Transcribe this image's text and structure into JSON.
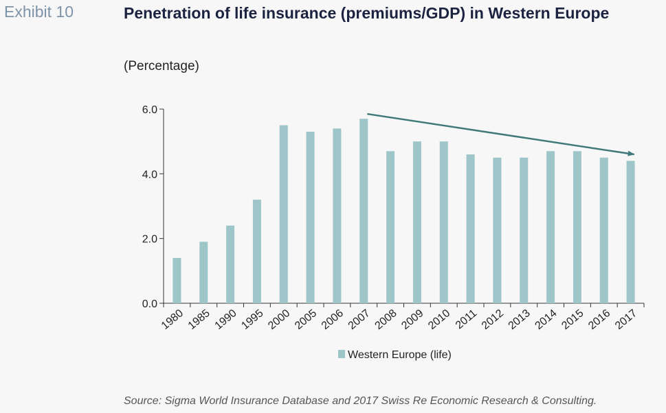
{
  "exhibit_label": "Exhibit 10",
  "title": "Penetration of life insurance (premiums/GDP) in Western Europe",
  "subtitle": "(Percentage)",
  "source": "Source: Sigma World Insurance Database and 2017 Swiss Re Economic Research & Consulting.",
  "colors": {
    "bar": "#9ec6c9",
    "trend_arrow": "#3f7a78",
    "axis": "#333333"
  },
  "chart_data": {
    "type": "bar",
    "categories": [
      "1980",
      "1985",
      "1990",
      "1995",
      "2000",
      "2005",
      "2006",
      "2007",
      "2008",
      "2009",
      "2010",
      "2011",
      "2012",
      "2013",
      "2014",
      "2015",
      "2016",
      "2017"
    ],
    "series": [
      {
        "name": "Western Europe (life)",
        "values": [
          1.4,
          1.9,
          2.4,
          3.2,
          5.5,
          5.3,
          5.4,
          5.7,
          4.7,
          5.0,
          5.0,
          4.6,
          4.5,
          4.5,
          4.7,
          4.7,
          4.5,
          4.4
        ]
      }
    ],
    "ylim": [
      0,
      6
    ],
    "yticks": [
      "0.0",
      "2.0",
      "4.0",
      "6.0"
    ],
    "ytick_values": [
      0,
      2,
      4,
      6
    ],
    "legend": "bottom-center",
    "grid": false,
    "annotation": {
      "type": "trend-arrow",
      "from": {
        "category": "2007",
        "value": 5.85
      },
      "to": {
        "category": "2017",
        "value": 4.6
      }
    }
  }
}
